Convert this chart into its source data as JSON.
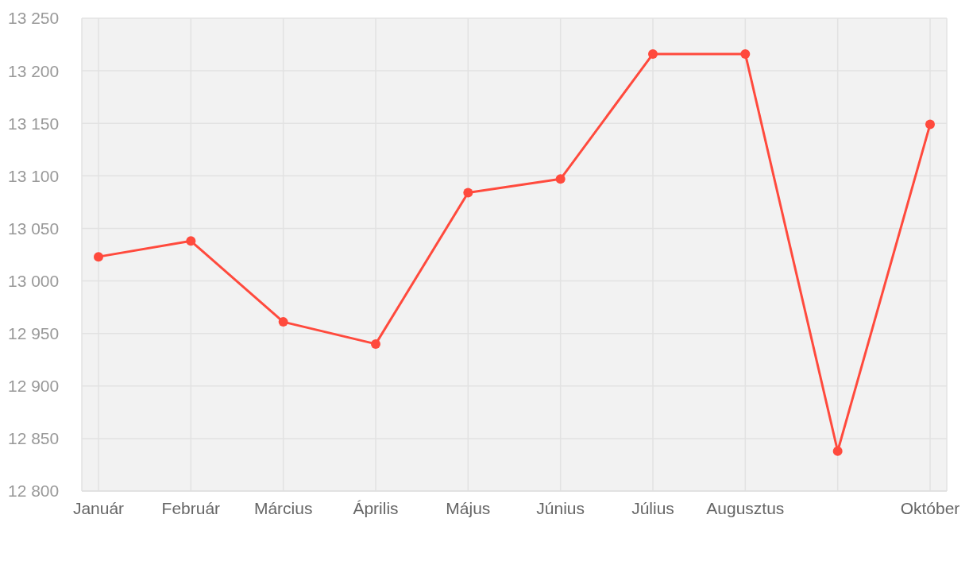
{
  "chart_data": {
    "type": "line",
    "categories": [
      "Január",
      "Február",
      "Március",
      "Április",
      "Május",
      "Június",
      "Július",
      "Augusztus",
      null,
      "Október"
    ],
    "series": [
      {
        "color": "#ff4a3d",
        "values": [
          13023,
          13038,
          12961,
          12940,
          13084,
          13097,
          13216,
          13216,
          12838,
          13149
        ]
      }
    ],
    "ylim": [
      12800,
      13250
    ],
    "yticks": [
      {
        "value": 12800,
        "label": "12 800"
      },
      {
        "value": 12850,
        "label": "12 850"
      },
      {
        "value": 12900,
        "label": "12 900"
      },
      {
        "value": 12950,
        "label": "12 950"
      },
      {
        "value": 13000,
        "label": "13 000"
      },
      {
        "value": 13050,
        "label": "13 050"
      },
      {
        "value": 13100,
        "label": "13 100"
      },
      {
        "value": 13150,
        "label": "13 150"
      },
      {
        "value": 13200,
        "label": "13 200"
      },
      {
        "value": 13250,
        "label": "13 250"
      }
    ],
    "grid": true,
    "marker": "circle",
    "line_style": "solid"
  }
}
